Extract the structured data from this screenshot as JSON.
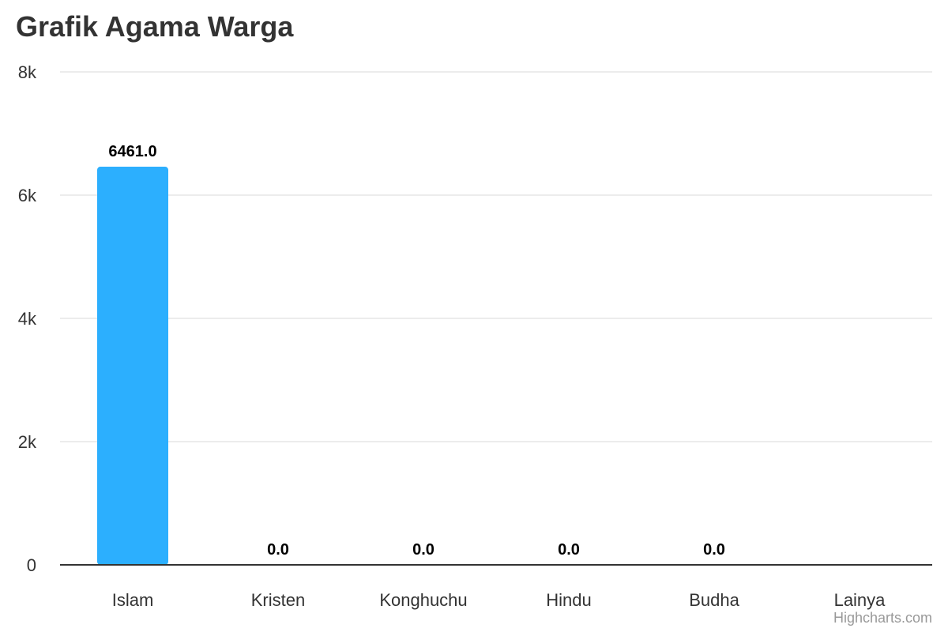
{
  "colors": {
    "bar": "#2caffe",
    "grid": "#e6e6e6",
    "axis_line": "#333333",
    "tick_label": "#333333",
    "data_label": "#000000",
    "title": "#333333",
    "credits": "#999999"
  },
  "credits": "Highcharts.com",
  "chart_data": {
    "type": "bar",
    "title": "Grafik Agama Warga",
    "xlabel": "",
    "ylabel": "",
    "categories": [
      "Islam",
      "Kristen",
      "Konghuchu",
      "Hindu",
      "Budha",
      "Lainya"
    ],
    "values": [
      6461.0,
      0.0,
      0.0,
      0.0,
      0.0,
      null
    ],
    "data_labels": [
      "6461.0",
      "0.0",
      "0.0",
      "0.0",
      "0.0",
      ""
    ],
    "ylim": [
      0,
      8000
    ],
    "y_ticks": [
      0,
      2000,
      4000,
      6000,
      8000
    ],
    "y_tick_labels": [
      "0",
      "2k",
      "4k",
      "6k",
      "8k"
    ],
    "grid": true,
    "legend": "none"
  }
}
